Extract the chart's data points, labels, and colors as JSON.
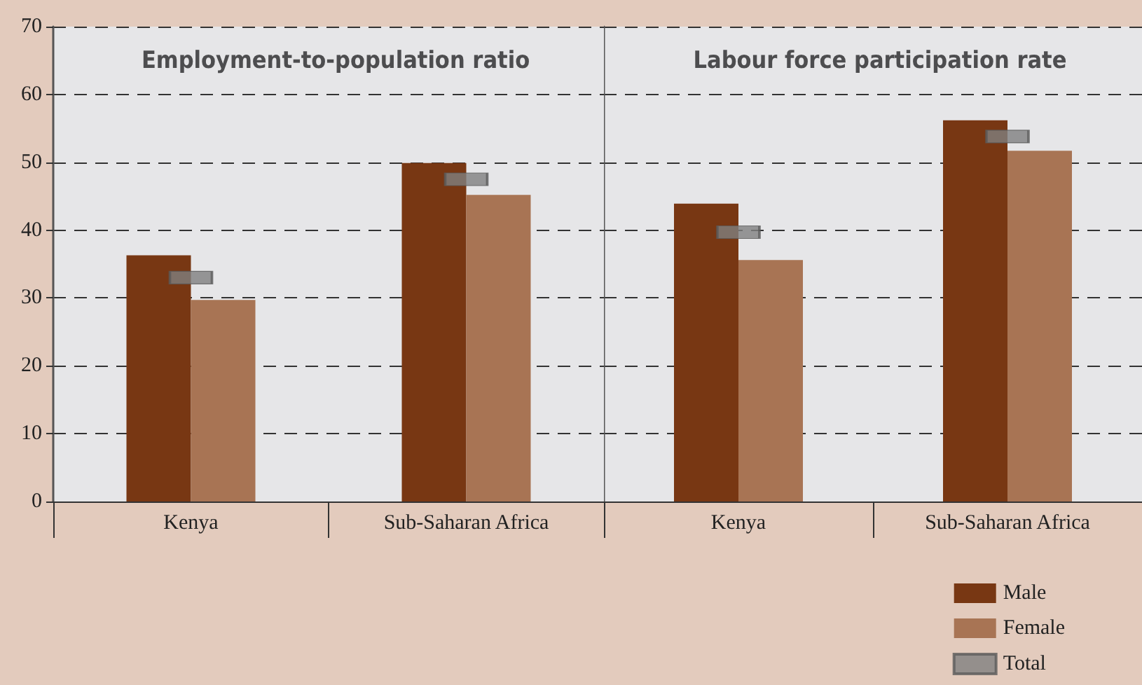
{
  "chart_data": [
    {
      "type": "bar",
      "title": "Employment-to-population ratio",
      "categories": [
        "Kenya",
        "Sub-Saharan Africa"
      ],
      "series": [
        {
          "color": "#783713",
          "values": [
            36.3,
            49.9
          ]
        },
        {
          "color": "#a87454",
          "values": [
            29.7,
            45.2
          ]
        },
        {
          "type": "scatter",
          "color": "#808080",
          "x": [
            "Kenya",
            "Sub-Saharan Africa"
          ],
          "values": [
            33.0,
            47.5
          ]
        }
      ],
      "ylim": [
        0,
        70
      ],
      "yticks": [
        0,
        10,
        20,
        30,
        40,
        50,
        60,
        70
      ],
      "grid": "y",
      "marker": "square"
    },
    {
      "type": "bar",
      "title": "Labour force participation rate",
      "categories": [
        "Kenya",
        "Sub-Saharan Africa"
      ],
      "series": [
        {
          "name": "Male",
          "color": "#783713",
          "values": [
            43.9,
            56.2
          ]
        },
        {
          "name": "Female",
          "color": "#a87454",
          "values": [
            35.6,
            51.7
          ]
        },
        {
          "name": "Total",
          "type": "scatter",
          "color": "#808080",
          "x": [
            "Kenya",
            "Sub-Saharan Africa"
          ],
          "values": [
            39.7,
            53.8
          ]
        }
      ],
      "ylim": [
        0,
        70
      ],
      "yticks": [
        0,
        10,
        20,
        30,
        40,
        50,
        60,
        70
      ],
      "grid": "y",
      "legend": "bottom right",
      "marker": "square",
      "tick_labels": "x"
    }
  ]
}
